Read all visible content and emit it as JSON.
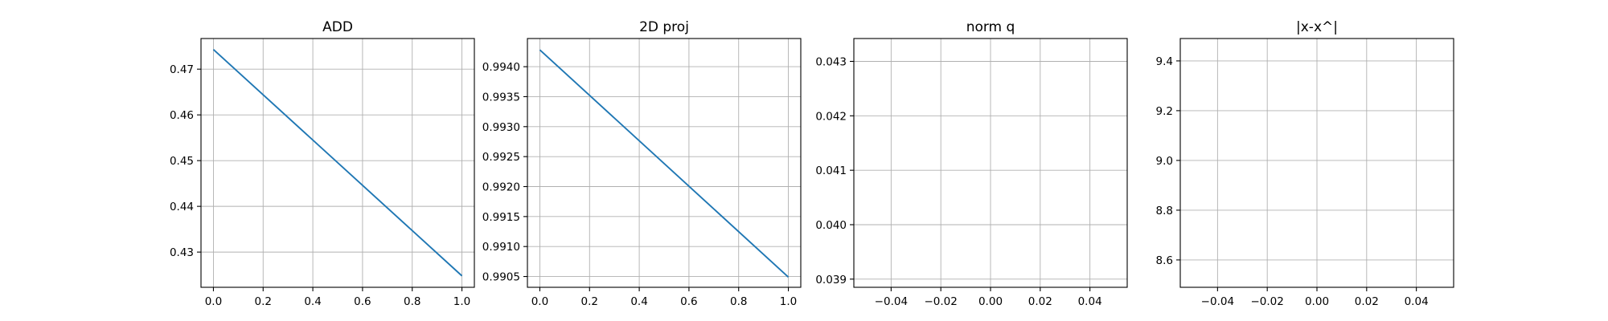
{
  "colors": {
    "series": "#1f77b4",
    "grid": "#b0b0b0"
  },
  "chart_data": [
    {
      "type": "line",
      "title": "ADD",
      "xlabel": "",
      "ylabel": "",
      "xlim": [
        -0.05,
        1.05
      ],
      "ylim": [
        0.4223,
        0.4767
      ],
      "xticks": [
        0.0,
        0.2,
        0.4,
        0.6,
        0.8,
        1.0
      ],
      "xtick_labels": [
        "0.0",
        "0.2",
        "0.4",
        "0.6",
        "0.8",
        "1.0"
      ],
      "yticks": [
        0.43,
        0.44,
        0.45,
        0.46,
        0.47
      ],
      "ytick_labels": [
        "0.43",
        "0.44",
        "0.45",
        "0.46",
        "0.47"
      ],
      "grid": true,
      "series": [
        {
          "x": [
            0.0,
            1.0
          ],
          "y": [
            0.4743,
            0.4248
          ]
        }
      ]
    },
    {
      "type": "line",
      "title": "2D proj",
      "xlabel": "",
      "ylabel": "",
      "xlim": [
        -0.05,
        1.05
      ],
      "ylim": [
        0.99032,
        0.99447
      ],
      "xticks": [
        0.0,
        0.2,
        0.4,
        0.6,
        0.8,
        1.0
      ],
      "xtick_labels": [
        "0.0",
        "0.2",
        "0.4",
        "0.6",
        "0.8",
        "1.0"
      ],
      "yticks": [
        0.9905,
        0.991,
        0.9915,
        0.992,
        0.9925,
        0.993,
        0.9935,
        0.994
      ],
      "ytick_labels": [
        "0.9905",
        "0.9910",
        "0.9915",
        "0.9920",
        "0.9925",
        "0.9930",
        "0.9935",
        "0.9940"
      ],
      "grid": true,
      "series": [
        {
          "x": [
            0.0,
            1.0
          ],
          "y": [
            0.99428,
            0.99049
          ]
        }
      ]
    },
    {
      "type": "line",
      "title": "norm q",
      "xlabel": "",
      "ylabel": "",
      "xlim": [
        -0.055,
        0.055
      ],
      "ylim": [
        0.03885,
        0.04342
      ],
      "xticks": [
        -0.04,
        -0.02,
        0.0,
        0.02,
        0.04
      ],
      "xtick_labels": [
        "−0.04",
        "−0.02",
        "0.00",
        "0.02",
        "0.04"
      ],
      "yticks": [
        0.039,
        0.04,
        0.041,
        0.042,
        0.043
      ],
      "ytick_labels": [
        "0.039",
        "0.040",
        "0.041",
        "0.042",
        "0.043"
      ],
      "grid": true,
      "series": []
    },
    {
      "type": "line",
      "title": "|x-x^|",
      "xlabel": "",
      "ylabel": "",
      "xlim": [
        -0.055,
        0.055
      ],
      "ylim": [
        8.49,
        9.49
      ],
      "xticks": [
        -0.04,
        -0.02,
        0.0,
        0.02,
        0.04
      ],
      "xtick_labels": [
        "−0.04",
        "−0.02",
        "0.00",
        "0.02",
        "0.04"
      ],
      "yticks": [
        8.6,
        8.8,
        9.0,
        9.2,
        9.4
      ],
      "ytick_labels": [
        "8.6",
        "8.8",
        "9.0",
        "9.2",
        "9.4"
      ],
      "grid": true,
      "series": []
    }
  ]
}
